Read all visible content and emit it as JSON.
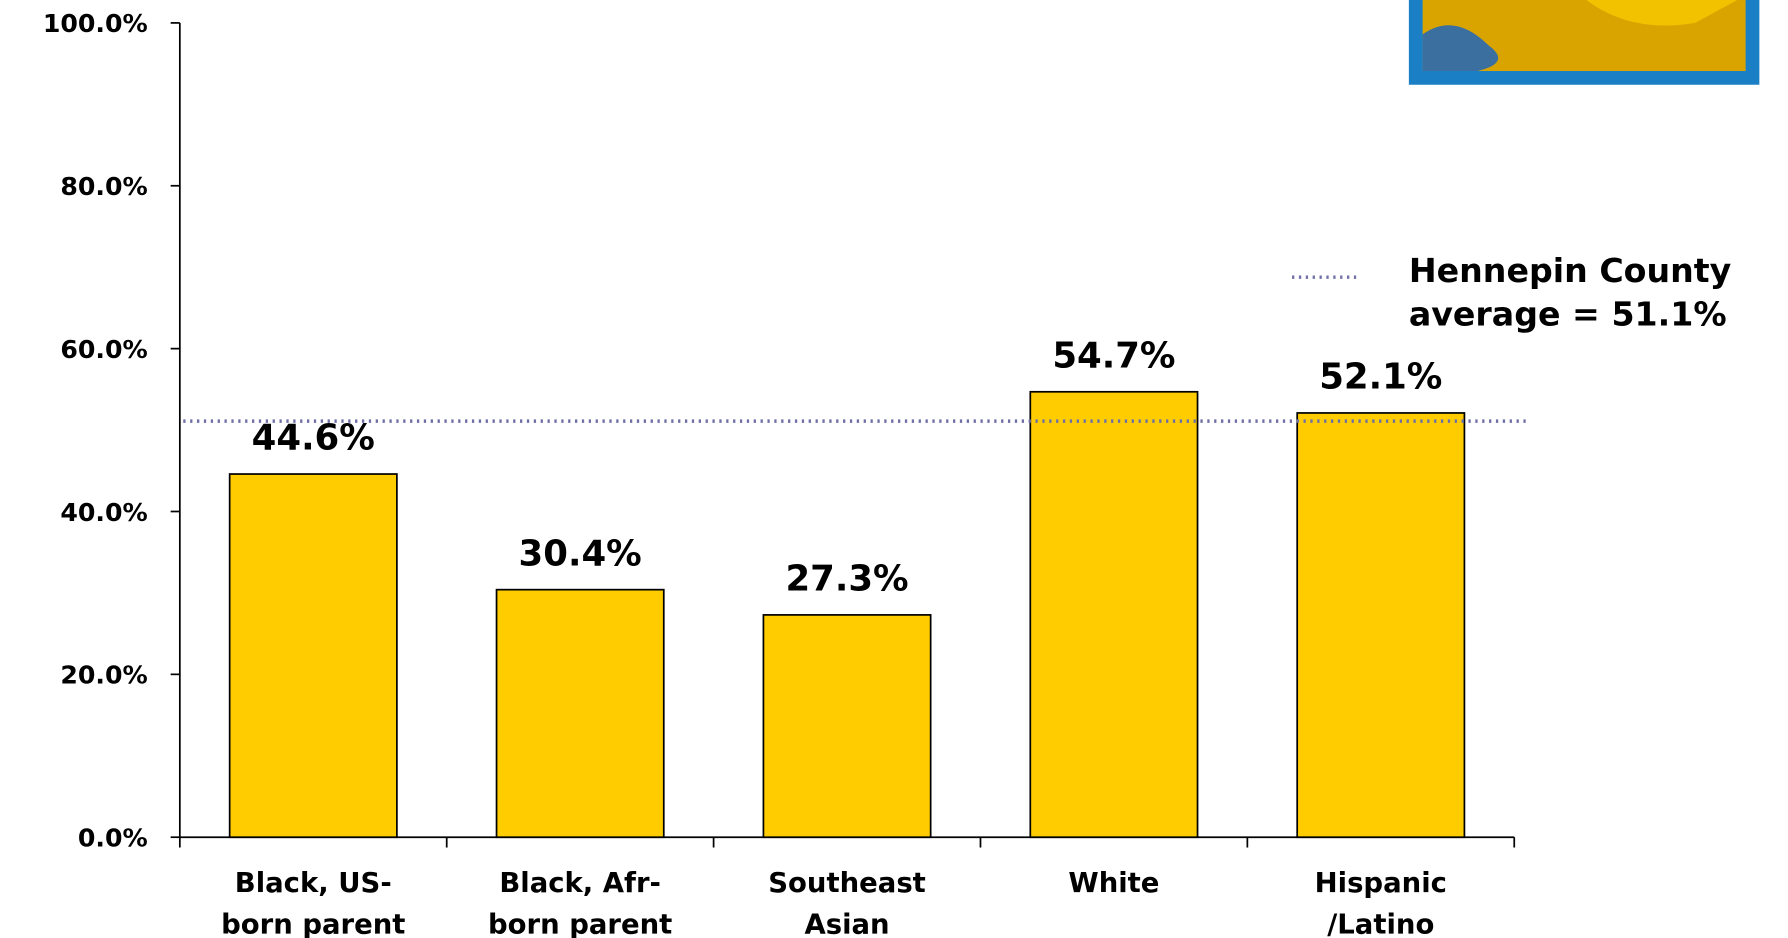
{
  "chart_data": {
    "type": "bar",
    "categories": [
      [
        "Black, US-",
        "born parent"
      ],
      [
        "Black, Afr-",
        "born parent"
      ],
      [
        "Southeast",
        "Asian"
      ],
      [
        "White"
      ],
      [
        "Hispanic",
        "/Latino"
      ]
    ],
    "values": [
      44.6,
      30.4,
      27.3,
      54.7,
      52.1
    ],
    "value_labels": [
      "44.6%",
      "30.4%",
      "27.3%",
      "54.7%",
      "52.1%"
    ],
    "color": "#ffcc00",
    "ylim": [
      0,
      100
    ],
    "yticks": [
      {
        "value": 0,
        "label": "0.0%"
      },
      {
        "value": 20,
        "label": "20.0%"
      },
      {
        "value": 40,
        "label": "40.0%"
      },
      {
        "value": 60,
        "label": "60.0%"
      },
      {
        "value": 80,
        "label": "80.0%"
      },
      {
        "value": 100,
        "label": "100.0%"
      }
    ],
    "reference_line": {
      "value": 51.1,
      "label": [
        "Hennepin County",
        "average = 51.1%"
      ],
      "color": "#6f6fa8"
    }
  }
}
